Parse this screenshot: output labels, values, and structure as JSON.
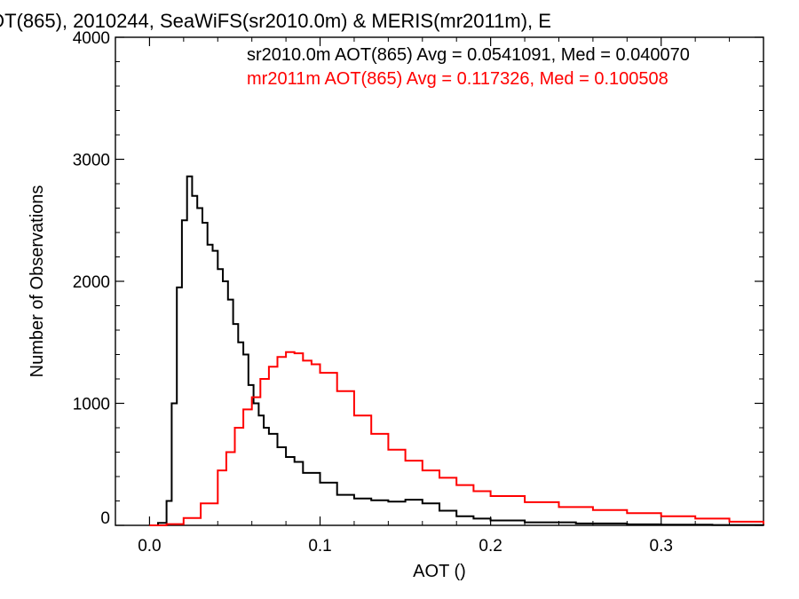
{
  "chart_data": {
    "type": "line",
    "title": "OT(865), 2010244, SeaWiFS(sr2010.0m) & MERIS(mr2011m), E",
    "xlabel": "AOT ()",
    "ylabel": "Number of Observations",
    "xlim": [
      -0.02,
      0.36
    ],
    "ylim": [
      0,
      4000
    ],
    "x_ticks": [
      0.0,
      0.1,
      0.2,
      0.3
    ],
    "x_tick_labels": [
      "0.0",
      "0.1",
      "0.2",
      "0.3"
    ],
    "y_ticks": [
      0,
      1000,
      2000,
      3000,
      4000
    ],
    "y_tick_labels": [
      "0",
      "1000",
      "2000",
      "3000",
      "4000"
    ],
    "grid": false,
    "legend": [
      {
        "text": "sr2010.0m AOT(865) Avg = 0.0541091, Med = 0.040070",
        "color": "#000000"
      },
      {
        "text": "mr2011m AOT(865) Avg = 0.117326, Med = 0.100508",
        "color": "#ff0000"
      }
    ],
    "legend_placement": "top-right",
    "series": [
      {
        "color": "#000000",
        "x": [
          0.0,
          0.005,
          0.01,
          0.013,
          0.016,
          0.019,
          0.022,
          0.025,
          0.028,
          0.031,
          0.034,
          0.037,
          0.04,
          0.043,
          0.046,
          0.049,
          0.052,
          0.055,
          0.058,
          0.061,
          0.064,
          0.067,
          0.07,
          0.075,
          0.08,
          0.085,
          0.09,
          0.1,
          0.11,
          0.12,
          0.13,
          0.14,
          0.15,
          0.16,
          0.17,
          0.18,
          0.19,
          0.2,
          0.22,
          0.25,
          0.28,
          0.3,
          0.33,
          0.36
        ],
        "values": [
          0,
          20,
          200,
          1000,
          1950,
          2500,
          2860,
          2700,
          2600,
          2480,
          2300,
          2250,
          2100,
          2000,
          1850,
          1650,
          1500,
          1400,
          1150,
          1000,
          900,
          800,
          750,
          640,
          560,
          520,
          430,
          350,
          250,
          220,
          205,
          195,
          210,
          180,
          120,
          75,
          55,
          40,
          25,
          15,
          8,
          5,
          3,
          0
        ]
      },
      {
        "color": "#ff0000",
        "x": [
          0.0,
          0.01,
          0.02,
          0.03,
          0.04,
          0.045,
          0.05,
          0.055,
          0.06,
          0.065,
          0.07,
          0.075,
          0.08,
          0.085,
          0.09,
          0.095,
          0.1,
          0.11,
          0.12,
          0.13,
          0.14,
          0.15,
          0.16,
          0.17,
          0.18,
          0.19,
          0.2,
          0.22,
          0.24,
          0.26,
          0.28,
          0.3,
          0.32,
          0.34,
          0.36
        ],
        "values": [
          0,
          10,
          60,
          180,
          450,
          600,
          800,
          950,
          1050,
          1200,
          1300,
          1380,
          1420,
          1410,
          1350,
          1320,
          1250,
          1100,
          900,
          750,
          620,
          530,
          450,
          390,
          330,
          280,
          240,
          190,
          150,
          125,
          100,
          75,
          55,
          30,
          10
        ]
      }
    ]
  }
}
